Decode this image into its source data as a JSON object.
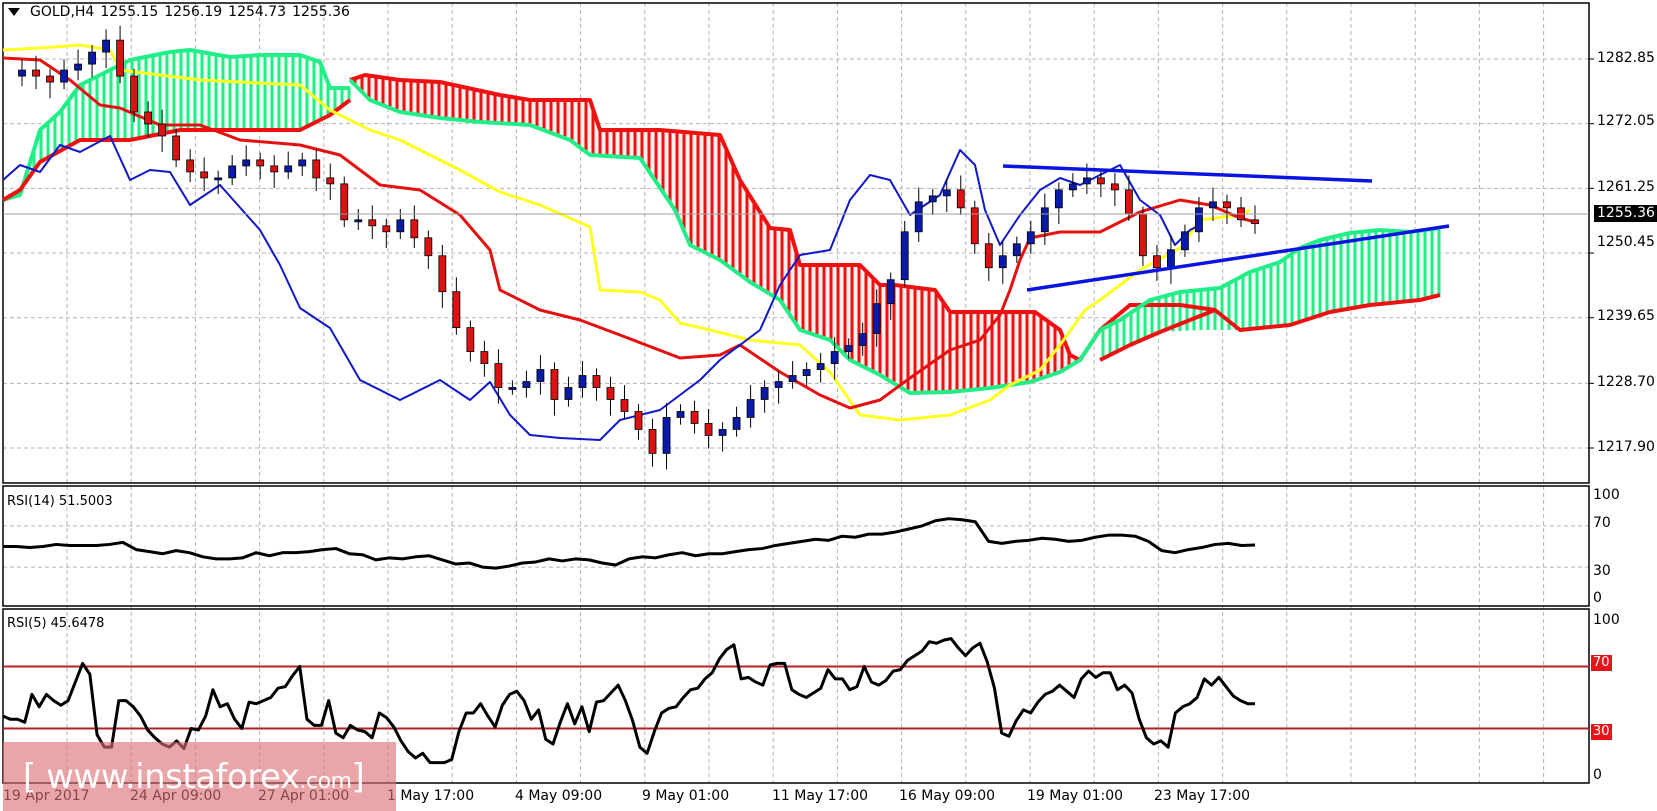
{
  "header": {
    "symbol": "GOLD,H4",
    "open": "1255.15",
    "high": "1256.19",
    "low": "1254.73",
    "close": "1255.36"
  },
  "price_axis": {
    "ticks": [
      "1282.85",
      "1272.05",
      "1261.25",
      "1250.45",
      "1239.65",
      "1228.70",
      "1217.90"
    ],
    "current_price": "1255.36"
  },
  "rsi14": {
    "label": "RSI(14) 51.5003",
    "ticks": [
      "100",
      "70",
      "30",
      "0"
    ]
  },
  "rsi5": {
    "label": "RSI(5) 45.6478",
    "ticks": [
      "100",
      "0"
    ],
    "level_badges": [
      "70",
      "30"
    ]
  },
  "time_axis": {
    "labels": [
      "19 Apr 2017",
      "24 Apr 09:00",
      "27 Apr 01:00",
      "1 May 17:00",
      "4 May 09:00",
      "9 May 01:00",
      "11 May 17:00",
      "16 May 09:00",
      "19 May 01:00",
      "23 May 17:00"
    ]
  },
  "watermark": {
    "left": "[ www.instaforex",
    "small": ".com",
    "right": " ]"
  },
  "colors": {
    "bull_candle": "#0a1aa8",
    "bear_candle": "#dd1111",
    "tenkan": "#e51010",
    "kijun": "#ffff22",
    "chikou": "#1018c8",
    "senkou_a": "#22ee88",
    "senkou_b": "#ee1111",
    "trendline": "#0a14e0",
    "rsi_line": "#000000",
    "rsi_level": "#b22222"
  },
  "chart_data": [
    {
      "type": "candlestick",
      "title": "GOLD,H4",
      "indicators": [
        "Ichimoku Kinko Hyo (Tenkan, Kijun, Chikou, Senkou A/B cloud)",
        "Trendlines (symmetrical triangle)"
      ],
      "ylim": [
        1213,
        1292
      ],
      "yticks": [
        1282.85,
        1272.05,
        1261.25,
        1250.45,
        1239.65,
        1228.7,
        1217.9
      ],
      "current_price": 1255.36,
      "ohlc_last": {
        "open": 1255.15,
        "high": 1256.19,
        "low": 1254.73,
        "close": 1255.36
      },
      "x_labels": [
        "19 Apr 2017",
        "24 Apr 09:00",
        "27 Apr 01:00",
        "1 May 17:00",
        "4 May 09:00",
        "9 May 01:00",
        "11 May 17:00",
        "16 May 09:00",
        "19 May 01:00",
        "23 May 17:00"
      ],
      "close_series_approx": [
        1280,
        1281,
        1280,
        1279,
        1281,
        1282,
        1284,
        1286,
        1280,
        1274,
        1272,
        1270,
        1266,
        1264,
        1263,
        1263,
        1265,
        1266,
        1265,
        1264,
        1265,
        1266,
        1263,
        1262,
        1256,
        1256,
        1255,
        1254,
        1256,
        1253,
        1250,
        1244,
        1238,
        1234,
        1232,
        1228,
        1228,
        1229,
        1231,
        1226,
        1228,
        1230,
        1228,
        1226,
        1224,
        1221,
        1217,
        1223,
        1224,
        1222,
        1220,
        1221,
        1223,
        1226,
        1228,
        1229,
        1230,
        1231,
        1232,
        1234,
        1235,
        1237,
        1242,
        1246,
        1254,
        1259,
        1260,
        1261,
        1258,
        1252,
        1248,
        1250,
        1252,
        1254,
        1258,
        1261,
        1262,
        1263,
        1262,
        1261,
        1257,
        1250,
        1248,
        1251,
        1254,
        1258,
        1259,
        1258,
        1256,
        1255.36
      ],
      "trendlines": [
        {
          "name": "upper",
          "from": [
            1257,
            1264.5
          ],
          "to": [
            1312,
            1262.5
          ]
        },
        {
          "name": "lower",
          "from": [
            1270,
            1245.5
          ],
          "to": [
            1416,
            1255.5
          ]
        }
      ]
    },
    {
      "type": "line",
      "title": "RSI(14)",
      "last_value": 51.5003,
      "ylim": [
        0,
        100
      ],
      "levels": [
        70,
        30
      ],
      "values_approx": [
        50,
        50,
        49,
        50,
        52,
        51,
        51,
        51,
        52,
        54,
        47,
        45,
        43,
        46,
        44,
        40,
        38,
        38,
        39,
        44,
        41,
        44,
        44,
        45,
        47,
        48,
        43,
        42,
        37,
        39,
        38,
        40,
        41,
        37,
        33,
        34,
        30,
        29,
        31,
        34,
        35,
        38,
        36,
        38,
        37,
        34,
        32,
        38,
        40,
        39,
        42,
        44,
        41,
        43,
        43,
        45,
        47,
        48,
        51,
        53,
        55,
        57,
        56,
        60,
        59,
        62,
        62,
        64,
        67,
        70,
        75,
        77,
        76,
        74,
        55,
        53,
        55,
        56,
        58,
        57,
        55,
        56,
        59,
        61,
        61,
        60,
        55,
        46,
        44,
        47,
        49,
        52,
        53,
        51,
        51.5
      ]
    },
    {
      "type": "line",
      "title": "RSI(5)",
      "last_value": 45.6478,
      "ylim": [
        0,
        100
      ],
      "levels": [
        70,
        30
      ],
      "values_approx": [
        38,
        36,
        36,
        34,
        52,
        44,
        52,
        48,
        45,
        48,
        60,
        72,
        65,
        26,
        18,
        18,
        48,
        48,
        44,
        38,
        29,
        24,
        20,
        18,
        22,
        17,
        30,
        29,
        38,
        55,
        44,
        46,
        36,
        30,
        47,
        46,
        48,
        50,
        56,
        57,
        64,
        70,
        36,
        32,
        32,
        48,
        27,
        24,
        32,
        29,
        28,
        24,
        40,
        37,
        31,
        22,
        15,
        11,
        14,
        8,
        8,
        8,
        10,
        28,
        40,
        40,
        46,
        38,
        31,
        45,
        52,
        54,
        48,
        36,
        42,
        23,
        20,
        34,
        46,
        33,
        44,
        28,
        47,
        48,
        53,
        58,
        48,
        35,
        18,
        14,
        28,
        40,
        43,
        44,
        50,
        55,
        56,
        62,
        66,
        75,
        81,
        84,
        62,
        63,
        60,
        58,
        71,
        72,
        72,
        55,
        52,
        50,
        53,
        56,
        68,
        62,
        62,
        55,
        57,
        70,
        60,
        58,
        61,
        67,
        68,
        74,
        77,
        80,
        86,
        85,
        87,
        88,
        82,
        77,
        82,
        85,
        73,
        56,
        27,
        25,
        35,
        42,
        40,
        47,
        52,
        54,
        58,
        54,
        50,
        62,
        67,
        63,
        66,
        66,
        55,
        58,
        53,
        36,
        24,
        20,
        22,
        18,
        40,
        44,
        46,
        50,
        62,
        58,
        63,
        57,
        51,
        48,
        46,
        46
      ]
    }
  ]
}
